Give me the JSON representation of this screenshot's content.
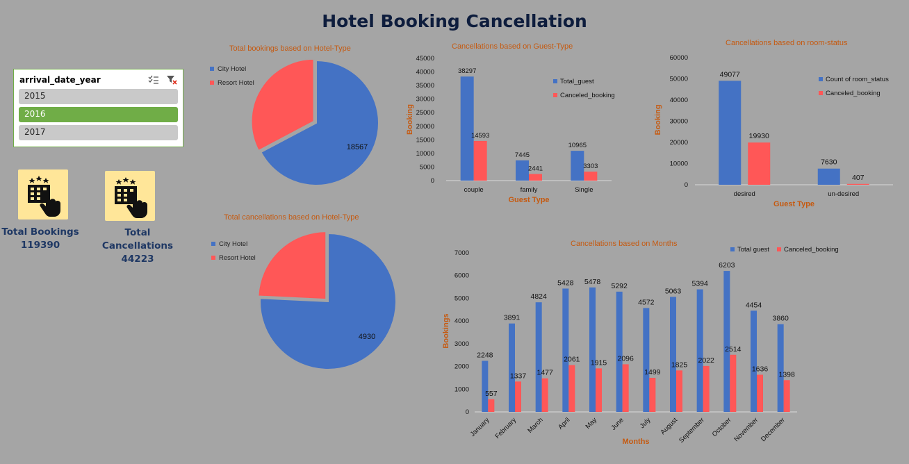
{
  "title": "Hotel Booking Cancellation",
  "slicer": {
    "title": "arrival_date_year",
    "items": [
      {
        "label": "2015",
        "selected": false
      },
      {
        "label": "2016",
        "selected": true
      },
      {
        "label": "2017",
        "selected": false
      }
    ]
  },
  "kpis": {
    "bookings_label": "Total Bookings",
    "bookings_value": "119390",
    "cancellations_label": "Total Cancellations",
    "cancellations_value": "44223"
  },
  "colors": {
    "blue": "#4472c4",
    "red": "#ff5757",
    "title": "#c55a11",
    "kpi_bg": "#ffe699"
  },
  "chart_data": [
    {
      "id": "bookings_pie",
      "type": "pie",
      "title": "Total bookings based on Hotel-Type",
      "labels": [
        "City Hotel",
        "Resort Hotel"
      ],
      "values": [
        38140,
        18567
      ],
      "legend": "top-left"
    },
    {
      "id": "cancel_pie",
      "type": "pie",
      "title": "Total cancellations based on Hotel-Type",
      "labels": [
        "City Hotel",
        "Resort Hotel"
      ],
      "values": [
        15407,
        4930
      ],
      "legend": "top-left"
    },
    {
      "id": "guest_bar",
      "type": "bar",
      "title": "Cancellations based on Guest-Type",
      "xlabel": "Guest Type",
      "ylabel": "Booking",
      "categories": [
        "couple",
        "family",
        "Single"
      ],
      "series": [
        {
          "name": "Total_guest",
          "values": [
            38297,
            7445,
            10965
          ]
        },
        {
          "name": "Canceled_booking",
          "values": [
            14593,
            2441,
            3303
          ]
        }
      ],
      "ylim": [
        0,
        45000
      ],
      "yticks": [
        "0",
        "5000",
        "10000",
        "15000",
        "20000",
        "25000",
        "30000",
        "35000",
        "40000",
        "45000"
      ],
      "legend": "right"
    },
    {
      "id": "room_bar",
      "type": "bar",
      "title": "Cancellations based on room-status",
      "xlabel": "Guest Type",
      "ylabel": "Booking",
      "categories": [
        "desired",
        "un-desired"
      ],
      "series": [
        {
          "name": "Count of room_status",
          "values": [
            49077,
            7630
          ]
        },
        {
          "name": "Canceled_booking",
          "values": [
            19930,
            407
          ]
        }
      ],
      "ylim": [
        0,
        60000
      ],
      "yticks": [
        "0",
        "10000",
        "20000",
        "30000",
        "40000",
        "50000",
        "60000"
      ],
      "legend": "right"
    },
    {
      "id": "months_bar",
      "type": "bar",
      "title": "Cancellations based on Months",
      "xlabel": "Months",
      "ylabel": "Bookings",
      "categories": [
        "January",
        "February",
        "March",
        "April",
        "May",
        "June",
        "July",
        "August",
        "September",
        "October",
        "November",
        "December"
      ],
      "series": [
        {
          "name": "Total guest",
          "values": [
            2248,
            3891,
            4824,
            5428,
            5478,
            5292,
            4572,
            5063,
            5394,
            6203,
            4454,
            3860
          ]
        },
        {
          "name": "Canceled_booking",
          "values": [
            557,
            1337,
            1477,
            2061,
            1915,
            2096,
            1499,
            1825,
            2022,
            2514,
            1636,
            1398
          ]
        }
      ],
      "ylim": [
        0,
        7000
      ],
      "yticks": [
        "0",
        "1000",
        "2000",
        "3000",
        "4000",
        "5000",
        "6000",
        "7000"
      ],
      "legend": "top"
    }
  ]
}
